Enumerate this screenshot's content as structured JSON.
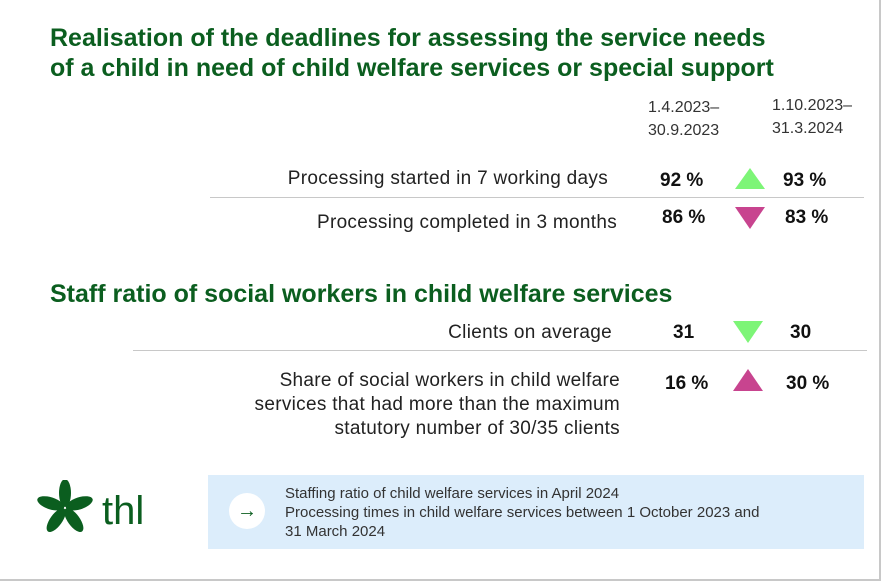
{
  "section1": {
    "title_line1": "Realisation of the deadlines for assessing the service needs",
    "title_line2": "of a child in need of child welfare services or special support",
    "period1": {
      "line1": "1.4.2023–",
      "line2": "30.9.2023"
    },
    "period2": {
      "line1": "1.10.2023–",
      "line2": "31.3.2024"
    },
    "rows": [
      {
        "label": "Processing started in 7 working days",
        "v1": "92 %",
        "v2": "93 %",
        "trend": "up"
      },
      {
        "label": "Processing completed in 3 months",
        "v1": "86 %",
        "v2": "83 %",
        "trend": "down"
      }
    ]
  },
  "section2": {
    "title": "Staff ratio of social workers in child welfare services",
    "rows": [
      {
        "label": "Clients on average",
        "v1": "31",
        "v2": "30",
        "trend": "down-green"
      },
      {
        "label_lines": [
          "Share of social workers in child welfare",
          "services that had more than the maximum",
          "statutory number of 30/35 clients"
        ],
        "v1": "16 %",
        "v2": "30 %",
        "trend": "up-magenta"
      }
    ]
  },
  "colors": {
    "title": "#0b5e1f",
    "green_triangle": "#7df577",
    "magenta_triangle": "#c8448f",
    "info_bg": "#dcedfb"
  },
  "logo": {
    "text": "thl",
    "icon": "five-leaf-flower-icon"
  },
  "info": {
    "icon": "arrow-right-icon",
    "links": [
      "Staffing ratio of child welfare services in April 2024",
      "Processing times in child welfare services between 1 October 2023 and",
      "31 March 2024"
    ]
  }
}
